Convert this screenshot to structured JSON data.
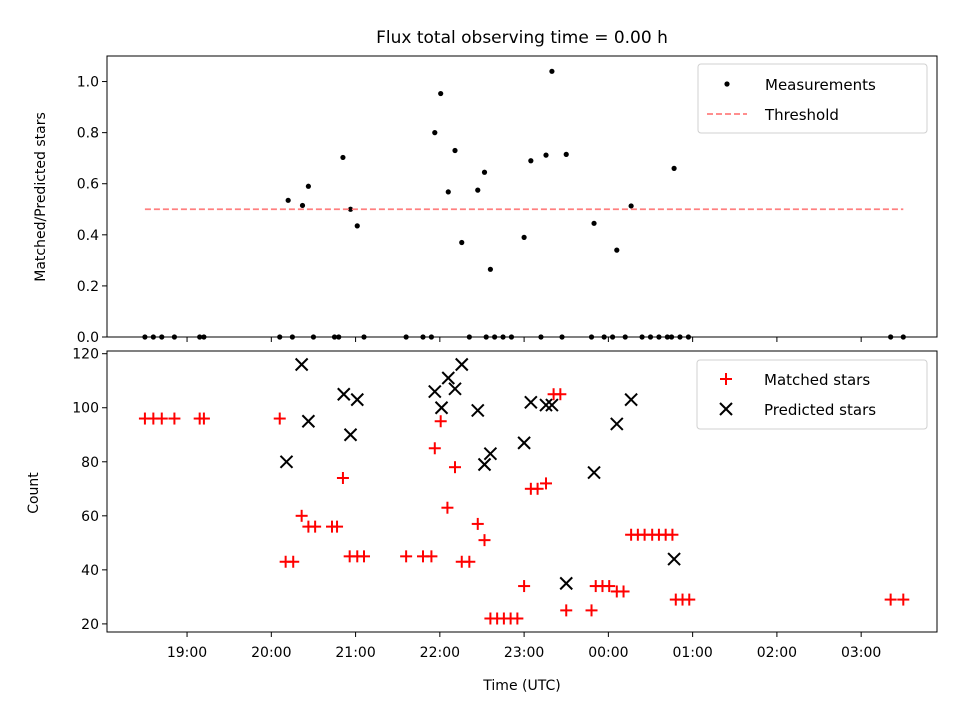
{
  "chart_data": [
    {
      "type": "scatter",
      "title": "Flux total observing time = 0.00 h",
      "xlabel": "",
      "ylabel": "Matched/Predicted stars",
      "xlim": [
        18.05,
        27.9
      ],
      "ylim": [
        0,
        1.1
      ],
      "yticks": [
        "0.0",
        "0.2",
        "0.4",
        "0.6",
        "0.8",
        "1.0"
      ],
      "grid": false,
      "legend_position": "top-right",
      "series": [
        {
          "name": "Measurements",
          "style": "point",
          "color": "#000000",
          "points": [
            [
              18.5,
              0
            ],
            [
              18.6,
              0
            ],
            [
              18.7,
              0
            ],
            [
              18.85,
              0
            ],
            [
              19.15,
              0
            ],
            [
              19.2,
              0
            ],
            [
              20.1,
              0
            ],
            [
              20.25,
              0
            ],
            [
              20.5,
              0
            ],
            [
              20.75,
              0
            ],
            [
              20.8,
              0
            ],
            [
              21.1,
              0
            ],
            [
              21.6,
              0
            ],
            [
              21.8,
              0
            ],
            [
              21.9,
              0
            ],
            [
              22.35,
              0
            ],
            [
              22.55,
              0
            ],
            [
              22.65,
              0
            ],
            [
              22.75,
              0
            ],
            [
              22.85,
              0
            ],
            [
              23.2,
              0
            ],
            [
              23.45,
              0
            ],
            [
              23.8,
              0
            ],
            [
              23.95,
              0
            ],
            [
              24.05,
              0
            ],
            [
              24.2,
              0
            ],
            [
              24.4,
              0
            ],
            [
              24.5,
              0
            ],
            [
              24.6,
              0
            ],
            [
              24.7,
              0
            ],
            [
              24.75,
              0
            ],
            [
              24.85,
              0
            ],
            [
              24.95,
              0
            ],
            [
              27.35,
              0
            ],
            [
              27.5,
              0
            ],
            [
              20.2,
              0.535
            ],
            [
              20.37,
              0.515
            ],
            [
              20.44,
              0.59
            ],
            [
              20.85,
              0.703
            ],
            [
              20.94,
              0.5
            ],
            [
              21.02,
              0.435
            ],
            [
              21.94,
              0.8
            ],
            [
              22.01,
              0.953
            ],
            [
              22.1,
              0.568
            ],
            [
              22.18,
              0.73
            ],
            [
              22.26,
              0.37
            ],
            [
              22.45,
              0.575
            ],
            [
              22.53,
              0.645
            ],
            [
              22.6,
              0.265
            ],
            [
              23.0,
              0.39
            ],
            [
              23.08,
              0.69
            ],
            [
              23.26,
              0.712
            ],
            [
              23.33,
              1.04
            ],
            [
              23.5,
              0.715
            ],
            [
              23.83,
              0.445
            ],
            [
              24.1,
              0.34
            ],
            [
              24.27,
              0.513
            ],
            [
              24.78,
              0.66
            ]
          ]
        },
        {
          "name": "Threshold",
          "style": "dashed-line",
          "color": "#ff7f7f",
          "points": [
            [
              18.5,
              0.5
            ],
            [
              27.5,
              0.5
            ]
          ]
        }
      ]
    },
    {
      "type": "scatter",
      "title": "",
      "xlabel": "Time (UTC)",
      "ylabel": "Count",
      "xlim": [
        18.05,
        27.9
      ],
      "ylim": [
        17,
        121
      ],
      "yticks": [
        "20",
        "40",
        "60",
        "80",
        "100",
        "120"
      ],
      "xticks": [
        {
          "value": 19,
          "label": "19:00"
        },
        {
          "value": 20,
          "label": "20:00"
        },
        {
          "value": 21,
          "label": "21:00"
        },
        {
          "value": 22,
          "label": "22:00"
        },
        {
          "value": 23,
          "label": "23:00"
        },
        {
          "value": 24,
          "label": "00:00"
        },
        {
          "value": 25,
          "label": "01:00"
        },
        {
          "value": 26,
          "label": "02:00"
        },
        {
          "value": 27,
          "label": "03:00"
        }
      ],
      "grid": false,
      "legend_position": "top-right",
      "series": [
        {
          "name": "Matched stars",
          "style": "plus",
          "color": "#ff0000",
          "points": [
            [
              18.5,
              96
            ],
            [
              18.6,
              96
            ],
            [
              18.7,
              96
            ],
            [
              18.85,
              96
            ],
            [
              19.15,
              96
            ],
            [
              19.2,
              96
            ],
            [
              20.1,
              96
            ],
            [
              20.17,
              43
            ],
            [
              20.26,
              43
            ],
            [
              20.36,
              60
            ],
            [
              20.44,
              56
            ],
            [
              20.52,
              56
            ],
            [
              20.72,
              56
            ],
            [
              20.78,
              56
            ],
            [
              20.85,
              74
            ],
            [
              20.93,
              45
            ],
            [
              21.02,
              45
            ],
            [
              21.1,
              45
            ],
            [
              21.6,
              45
            ],
            [
              21.8,
              45
            ],
            [
              21.9,
              45
            ],
            [
              21.94,
              85
            ],
            [
              22.01,
              95
            ],
            [
              22.09,
              63
            ],
            [
              22.18,
              78
            ],
            [
              22.26,
              43
            ],
            [
              22.35,
              43
            ],
            [
              22.45,
              57
            ],
            [
              22.53,
              51
            ],
            [
              22.6,
              22
            ],
            [
              22.68,
              22
            ],
            [
              22.76,
              22
            ],
            [
              22.84,
              22
            ],
            [
              22.92,
              22
            ],
            [
              23.0,
              34
            ],
            [
              23.08,
              70
            ],
            [
              23.16,
              70
            ],
            [
              23.26,
              72
            ],
            [
              23.35,
              105
            ],
            [
              23.43,
              105
            ],
            [
              23.5,
              25
            ],
            [
              23.8,
              25
            ],
            [
              23.85,
              34
            ],
            [
              23.93,
              34
            ],
            [
              24.01,
              34
            ],
            [
              24.1,
              32
            ],
            [
              24.18,
              32
            ],
            [
              24.27,
              53
            ],
            [
              24.35,
              53
            ],
            [
              24.43,
              53
            ],
            [
              24.52,
              53
            ],
            [
              24.6,
              53
            ],
            [
              24.68,
              53
            ],
            [
              24.76,
              53
            ],
            [
              24.8,
              29
            ],
            [
              24.88,
              29
            ],
            [
              24.96,
              29
            ],
            [
              27.35,
              29
            ],
            [
              27.5,
              29
            ]
          ]
        },
        {
          "name": "Predicted stars",
          "style": "x",
          "color": "#000000",
          "points": [
            [
              20.18,
              80
            ],
            [
              20.36,
              116
            ],
            [
              20.44,
              95
            ],
            [
              20.86,
              105
            ],
            [
              20.94,
              90
            ],
            [
              21.02,
              103
            ],
            [
              21.94,
              106
            ],
            [
              22.02,
              100
            ],
            [
              22.1,
              111
            ],
            [
              22.18,
              107
            ],
            [
              22.26,
              116
            ],
            [
              22.45,
              99
            ],
            [
              22.53,
              79
            ],
            [
              22.6,
              83
            ],
            [
              23.0,
              87
            ],
            [
              23.08,
              102
            ],
            [
              23.26,
              101
            ],
            [
              23.33,
              101
            ],
            [
              23.5,
              35
            ],
            [
              23.83,
              76
            ],
            [
              24.1,
              94
            ],
            [
              24.27,
              103
            ],
            [
              24.78,
              44
            ]
          ]
        }
      ]
    }
  ]
}
